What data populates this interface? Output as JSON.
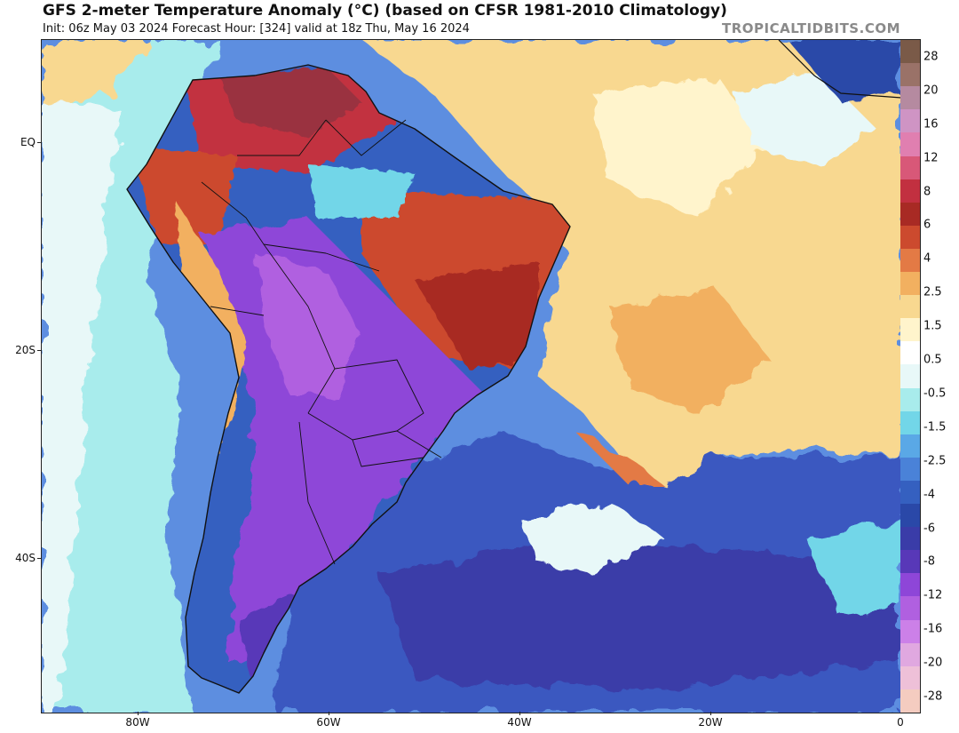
{
  "header": {
    "title": "GFS 2-meter Temperature Anomaly (°C) (based on CFSR 1981-2010 Climatology)",
    "subtitle": "Init: 06z May 03 2024   Forecast Hour: [324]   valid at 18z Thu, May 16 2024",
    "credit": "TROPICALTIDBITS.COM"
  },
  "map": {
    "latitude_labels": [
      "EQ",
      "20S",
      "40S"
    ],
    "longitude_labels": [
      "80W",
      "60W",
      "40W",
      "20W",
      "0"
    ]
  },
  "colorbar": {
    "labels": [
      "28",
      "20",
      "16",
      "12",
      "8",
      "6",
      "4",
      "2.5",
      "1.5",
      "0.5",
      "-0.5",
      "-1.5",
      "-2.5",
      "-4",
      "-6",
      "-8",
      "-12",
      "-16",
      "-20",
      "-28"
    ],
    "colors": [
      "#7a5a48",
      "#9a7268",
      "#b58aa0",
      "#cf94c4",
      "#e07fb0",
      "#d85878",
      "#c23040",
      "#a82a24",
      "#cc4a2e",
      "#e37a45",
      "#f2b060",
      "#f8d890",
      "#fff4cc",
      "#ffffff",
      "#e8f8f8",
      "#a8ecec",
      "#72d6e8",
      "#5aa8e6",
      "#4a82d8",
      "#3560c0",
      "#2a48a8",
      "#3a3ca8",
      "#5838b8",
      "#8e46d8",
      "#b060e0",
      "#cc80e8",
      "#e0a8e0",
      "#eec0d8",
      "#f4ccc0"
    ]
  }
}
